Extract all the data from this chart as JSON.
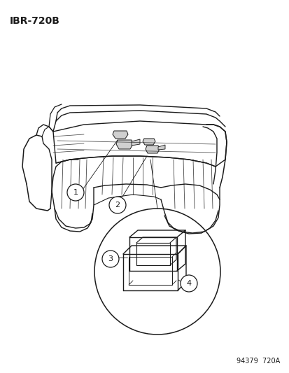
{
  "title_code": "IBR-720B",
  "footer_code": "94379  720A",
  "bg_color": "#ffffff",
  "line_color": "#1a1a1a",
  "title_fontsize": 10,
  "footer_fontsize": 7,
  "label_fontsize": 8
}
